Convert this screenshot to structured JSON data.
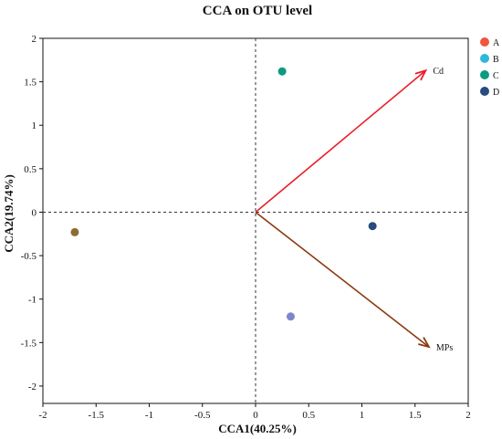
{
  "chart_data": {
    "type": "scatter",
    "title": "CCA on OTU level",
    "xlabel": "CCA1(40.25%)",
    "ylabel": "CCA2(19.74%)",
    "xlim": [
      -2,
      2
    ],
    "ylim": [
      -2.2,
      2
    ],
    "x_ticks": [
      "-2",
      "-1.5",
      "-1",
      "-0.5",
      "0",
      "0.5",
      "1",
      "1.5",
      "2"
    ],
    "y_ticks": [
      "-2",
      "-1.5",
      "-1",
      "-0.5",
      "0",
      "0.5",
      "1",
      "1.5",
      "2"
    ],
    "zero_lines": "dashed",
    "legend_position": "top-right",
    "series": [
      {
        "name": "A",
        "color": "#f0553f",
        "x": -1.7,
        "y": -0.23
      },
      {
        "name": "B",
        "color": "#2fb8d8",
        "x": 0.33,
        "y": -1.2
      },
      {
        "name": "C",
        "color": "#0c9a82",
        "x": 0.25,
        "y": 1.62
      },
      {
        "name": "D",
        "color": "#2b4a7e",
        "x": 1.1,
        "y": -0.16
      }
    ],
    "points": [
      {
        "x": -1.7,
        "y": -0.23,
        "color": "#8e6b33"
      },
      {
        "x": 0.33,
        "y": -1.2,
        "color": "#7d86c9"
      },
      {
        "x": 0.25,
        "y": 1.62,
        "color": "#0c9a82"
      },
      {
        "x": 1.1,
        "y": -0.16,
        "color": "#2b4a7e"
      }
    ],
    "arrows": [
      {
        "label": "Cd",
        "x": 1.6,
        "y": 1.63,
        "color": "#e8202a"
      },
      {
        "label": "MPs",
        "x": 1.63,
        "y": -1.55,
        "color": "#8b3a0f"
      }
    ]
  }
}
